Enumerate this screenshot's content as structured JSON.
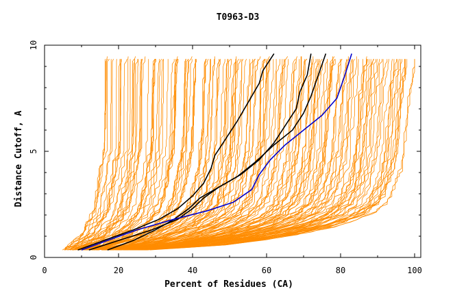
{
  "chart_data": {
    "type": "line",
    "title": "T0963-D3",
    "xlabel": "Percent of Residues (CA)",
    "ylabel": "Distance Cutoff, A",
    "xlim": [
      0,
      100
    ],
    "ylim": [
      0,
      10
    ],
    "x_ticks": [
      0,
      20,
      40,
      60,
      80,
      100
    ],
    "y_ticks": [
      0,
      5,
      10
    ],
    "grid": false,
    "legend": "none",
    "colors": {
      "background_group": "#ff8c00",
      "highlight": "#000000",
      "reference": "#0000cc"
    },
    "background_band": {
      "color": "#ff8c00",
      "count": 160,
      "x_min_at_y": [
        [
          0.35,
          5
        ],
        [
          1.0,
          9
        ],
        [
          2.0,
          12
        ],
        [
          3.0,
          13
        ],
        [
          4.0,
          14
        ],
        [
          5.0,
          15
        ],
        [
          6.0,
          15
        ],
        [
          7.0,
          15
        ],
        [
          8.0,
          15
        ],
        [
          9.0,
          15
        ],
        [
          9.5,
          16
        ]
      ],
      "x_max_at_y": [
        [
          0.35,
          28
        ],
        [
          0.6,
          50
        ],
        [
          1.0,
          66
        ],
        [
          1.5,
          80
        ],
        [
          2.0,
          88
        ],
        [
          2.5,
          92
        ],
        [
          3.0,
          94
        ],
        [
          4.0,
          96
        ],
        [
          5.0,
          97
        ],
        [
          7.0,
          98
        ],
        [
          9.5,
          100
        ]
      ]
    },
    "series": [
      {
        "color": "#000000",
        "points": [
          [
            9,
            0.35
          ],
          [
            16,
            0.8
          ],
          [
            24,
            1.3
          ],
          [
            31,
            1.8
          ],
          [
            36,
            2.3
          ],
          [
            40,
            2.9
          ],
          [
            43,
            3.5
          ],
          [
            45,
            4.2
          ],
          [
            46,
            4.8
          ],
          [
            49,
            5.6
          ],
          [
            52,
            6.4
          ],
          [
            55,
            7.3
          ],
          [
            58,
            8.2
          ],
          [
            59,
            8.8
          ],
          [
            62,
            9.6
          ]
        ]
      },
      {
        "color": "#000000",
        "points": [
          [
            12,
            0.35
          ],
          [
            20,
            0.8
          ],
          [
            29,
            1.3
          ],
          [
            36,
            1.8
          ],
          [
            40,
            2.3
          ],
          [
            43,
            2.8
          ],
          [
            47,
            3.3
          ],
          [
            53,
            3.9
          ],
          [
            58,
            4.6
          ],
          [
            62,
            5.4
          ],
          [
            65,
            6.2
          ],
          [
            68,
            7.0
          ],
          [
            69,
            7.8
          ],
          [
            71,
            8.6
          ],
          [
            72,
            9.6
          ]
        ]
      },
      {
        "color": "#000000",
        "points": [
          [
            17,
            0.35
          ],
          [
            24,
            0.8
          ],
          [
            30,
            1.3
          ],
          [
            35,
            1.8
          ],
          [
            39,
            2.3
          ],
          [
            42,
            2.8
          ],
          [
            47,
            3.3
          ],
          [
            52,
            3.8
          ],
          [
            57,
            4.5
          ],
          [
            62,
            5.3
          ],
          [
            67,
            6.0
          ],
          [
            70,
            6.8
          ],
          [
            72,
            7.6
          ],
          [
            74,
            8.6
          ],
          [
            76,
            9.6
          ]
        ]
      },
      {
        "color": "#0000cc",
        "points": [
          [
            10,
            0.35
          ],
          [
            17,
            0.8
          ],
          [
            25,
            1.3
          ],
          [
            35,
            1.8
          ],
          [
            44,
            2.2
          ],
          [
            51,
            2.6
          ],
          [
            56,
            3.2
          ],
          [
            58,
            3.9
          ],
          [
            61,
            4.6
          ],
          [
            65,
            5.3
          ],
          [
            70,
            6.0
          ],
          [
            75,
            6.7
          ],
          [
            79,
            7.5
          ],
          [
            81,
            8.5
          ],
          [
            83,
            9.6
          ]
        ]
      }
    ]
  }
}
